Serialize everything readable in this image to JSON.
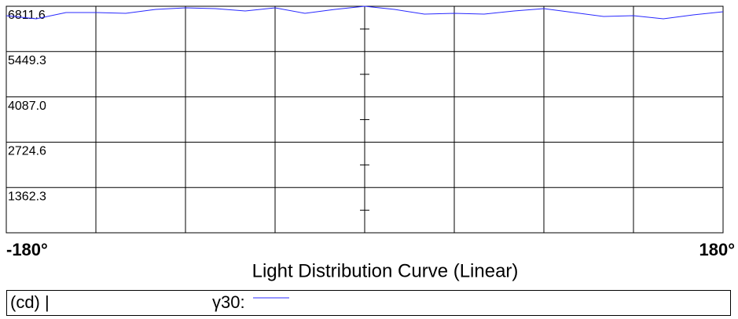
{
  "chart_data": {
    "type": "line",
    "title": "Light Distribution Curve (Linear)",
    "y_label": "(cd) |",
    "x": [
      -180,
      -165,
      -150,
      -135,
      -120,
      -105,
      -90,
      -75,
      -60,
      -45,
      -30,
      -15,
      0,
      15,
      30,
      45,
      60,
      75,
      90,
      105,
      120,
      135,
      150,
      165,
      180
    ],
    "series": [
      {
        "name": "γ30:",
        "color": "#2828ff",
        "values": [
          6529,
          6434,
          6623,
          6623,
          6599,
          6717,
          6764,
          6741,
          6670,
          6764,
          6599,
          6717,
          6811.6,
          6717,
          6576,
          6599,
          6576,
          6670,
          6741,
          6623,
          6505,
          6529,
          6434,
          6552,
          6646
        ]
      }
    ],
    "xlim": [
      -180,
      180
    ],
    "xticks": [
      {
        "value": -180,
        "label": "-180°"
      },
      {
        "value": 180,
        "label": "180°"
      }
    ],
    "ylim": [
      0,
      6811.6
    ],
    "yticks": [
      6811.6,
      5449.3,
      {
        "value": 4087.0,
        "label": "4087.0"
      },
      2724.6,
      1362.3
    ],
    "grid": true
  }
}
